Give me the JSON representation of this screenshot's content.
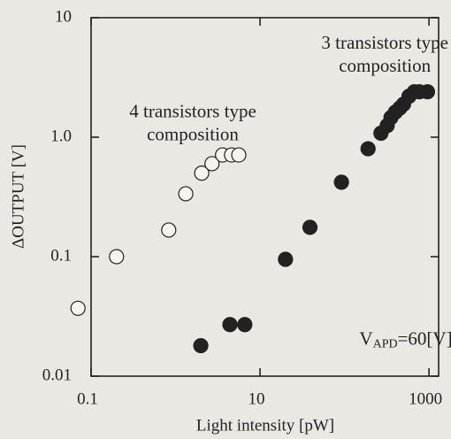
{
  "chart_data": {
    "type": "scatter",
    "xlabel": "Light intensity [pW]",
    "ylabel": "ΔOUTPUT [V]",
    "xscale": "log",
    "yscale": "log",
    "xlim": [
      0.1,
      1300
    ],
    "ylim": [
      0.01,
      10
    ],
    "xticks": [
      0.1,
      10,
      1000
    ],
    "yticks": [
      0.01,
      0.1,
      {
        "value": 1,
        "label": "1.0"
      },
      10
    ],
    "annotations": [
      {
        "lines": [
          "3 transistors type",
          "composition"
        ],
        "x": 300,
        "y": 6
      },
      {
        "lines": [
          "4 transistors type",
          "composition"
        ],
        "x": 1.6,
        "y": 1.6
      },
      {
        "text": "V",
        "sub": "APD",
        "rest": "=60[V]",
        "x": 150,
        "y": 0.02
      }
    ],
    "series": [
      {
        "marker": "open",
        "color": "#222222",
        "x": [
          0.07,
          0.2,
          0.83,
          1.32,
          2.04,
          2.7,
          3.6,
          4.6,
          5.6
        ],
        "values": [
          0.037,
          0.1,
          0.167,
          0.336,
          0.5,
          0.6,
          0.71,
          0.71,
          0.71
        ]
      },
      {
        "marker": "filled",
        "color": "#222222",
        "x": [
          1.99,
          4.4,
          6.6,
          20,
          39,
          92,
          190,
          270,
          320,
          355,
          400,
          450,
          500,
          580,
          670,
          770,
          960
        ],
        "values": [
          0.018,
          0.027,
          0.027,
          0.095,
          0.176,
          0.42,
          0.8,
          1.08,
          1.25,
          1.46,
          1.62,
          1.75,
          1.89,
          2.2,
          2.4,
          2.4,
          2.4
        ]
      }
    ]
  }
}
